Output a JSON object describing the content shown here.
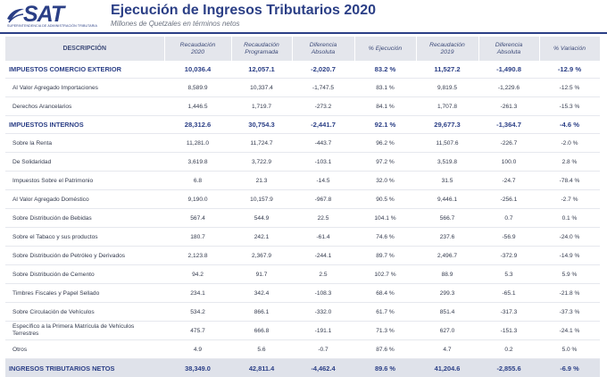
{
  "header": {
    "logo_text": "SAT",
    "logo_subtext": "SUPERINTENDENCIA DE ADMINISTRACIÓN TRIBUTARIA",
    "title": "Ejecución de Ingresos Tributarios 2020",
    "subtitle": "Millones de Quetzales en términos netos",
    "brand_color": "#2b3f86"
  },
  "table": {
    "columns": [
      {
        "l1": "DESCRIPCIÓN",
        "l2": ""
      },
      {
        "l1": "Recaudación",
        "l2": "2020"
      },
      {
        "l1": "Recaudación",
        "l2": "Programada"
      },
      {
        "l1": "Diferencia",
        "l2": "Absoluta"
      },
      {
        "l1": "% Ejecución",
        "l2": ""
      },
      {
        "l1": "Recaudación",
        "l2": "2019"
      },
      {
        "l1": "Diferencia",
        "l2": "Absoluta"
      },
      {
        "l1": "% Variación",
        "l2": ""
      }
    ],
    "rows": [
      {
        "type": "section",
        "cells": [
          "IMPUESTOS COMERCIO EXTERIOR",
          "10,036.4",
          "12,057.1",
          "-2,020.7",
          "83.2 %",
          "11,527.2",
          "-1,490.8",
          "-12.9 %"
        ]
      },
      {
        "type": "item",
        "cells": [
          "Al Valor Agregado Importaciones",
          "8,589.9",
          "10,337.4",
          "-1,747.5",
          "83.1 %",
          "9,819.5",
          "-1,229.6",
          "-12.5 %"
        ]
      },
      {
        "type": "item",
        "cells": [
          "Derechos Arancelarios",
          "1,446.5",
          "1,719.7",
          "-273.2",
          "84.1 %",
          "1,707.8",
          "-261.3",
          "-15.3 %"
        ]
      },
      {
        "type": "section",
        "cells": [
          "IMPUESTOS INTERNOS",
          "28,312.6",
          "30,754.3",
          "-2,441.7",
          "92.1 %",
          "29,677.3",
          "-1,364.7",
          "-4.6 %"
        ]
      },
      {
        "type": "item",
        "cells": [
          "Sobre la Renta",
          "11,281.0",
          "11,724.7",
          "-443.7",
          "96.2 %",
          "11,507.6",
          "-226.7",
          "-2.0 %"
        ]
      },
      {
        "type": "item",
        "cells": [
          "De Solidaridad",
          "3,619.8",
          "3,722.9",
          "-103.1",
          "97.2 %",
          "3,519.8",
          "100.0",
          "2.8 %"
        ]
      },
      {
        "type": "item",
        "cells": [
          "Impuestos Sobre el Patrimonio",
          "6.8",
          "21.3",
          "-14.5",
          "32.0 %",
          "31.5",
          "-24.7",
          "-78.4 %"
        ]
      },
      {
        "type": "item",
        "cells": [
          "Al Valor Agregado Doméstico",
          "9,190.0",
          "10,157.9",
          "-967.8",
          "90.5 %",
          "9,446.1",
          "-256.1",
          "-2.7 %"
        ]
      },
      {
        "type": "item",
        "cells": [
          "Sobre Distribución de Bebidas",
          "567.4",
          "544.9",
          "22.5",
          "104.1 %",
          "566.7",
          "0.7",
          "0.1 %"
        ]
      },
      {
        "type": "item",
        "cells": [
          "Sobre el Tabaco y sus productos",
          "180.7",
          "242.1",
          "-61.4",
          "74.6 %",
          "237.6",
          "-56.9",
          "-24.0 %"
        ]
      },
      {
        "type": "item",
        "cells": [
          "Sobre Distribución de Petróleo y Derivados",
          "2,123.8",
          "2,367.9",
          "-244.1",
          "89.7 %",
          "2,496.7",
          "-372.9",
          "-14.9 %"
        ]
      },
      {
        "type": "item",
        "cells": [
          "Sobre Distribución de Cemento",
          "94.2",
          "91.7",
          "2.5",
          "102.7 %",
          "88.9",
          "5.3",
          "5.9 %"
        ]
      },
      {
        "type": "item",
        "cells": [
          "Timbres Fiscales y Papel Sellado",
          "234.1",
          "342.4",
          "-108.3",
          "68.4 %",
          "299.3",
          "-65.1",
          "-21.8 %"
        ]
      },
      {
        "type": "item",
        "cells": [
          "Sobre Circulación de Vehículos",
          "534.2",
          "866.1",
          "-332.0",
          "61.7 %",
          "851.4",
          "-317.3",
          "-37.3 %"
        ]
      },
      {
        "type": "item2",
        "cells": [
          "Específico a la Primera Matrícula de Vehículos Terrestres",
          "475.7",
          "666.8",
          "-191.1",
          "71.3 %",
          "627.0",
          "-151.3",
          "-24.1 %"
        ]
      },
      {
        "type": "item",
        "cells": [
          "Otros",
          "4.9",
          "5.6",
          "-0.7",
          "87.6 %",
          "4.7",
          "0.2",
          "5.0 %"
        ]
      },
      {
        "type": "total",
        "cells": [
          "INGRESOS TRIBUTARIOS NETOS",
          "38,349.0",
          "42,811.4",
          "-4,462.4",
          "89.6 %",
          "41,204.6",
          "-2,855.6",
          "-6.9 %"
        ]
      }
    ]
  }
}
